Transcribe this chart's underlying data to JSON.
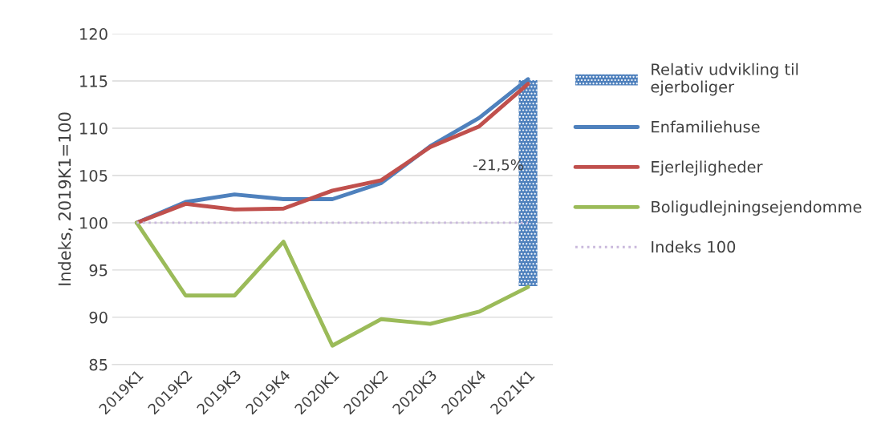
{
  "chart_data": {
    "type": "line",
    "ylabel": "Indeks, 2019K1=100",
    "categories": [
      "2019K1",
      "2019K2",
      "2019K3",
      "2019K4",
      "2020K1",
      "2020K2",
      "2020K3",
      "2020K4",
      "2021K1"
    ],
    "series": [
      {
        "name": "Relativ udvikling til ejerboliger",
        "type": "bar",
        "color": "#4f81bd",
        "values": [
          null,
          null,
          null,
          null,
          null,
          null,
          null,
          null,
          21.8
        ],
        "base": [
          null,
          null,
          null,
          null,
          null,
          null,
          null,
          null,
          93.3
        ]
      },
      {
        "name": "Enfamiliehuse",
        "color": "#4f81bd",
        "values": [
          100,
          102.2,
          103.0,
          102.5,
          102.5,
          104.2,
          108.1,
          111.1,
          115.2
        ]
      },
      {
        "name": "Ejerlejligheder",
        "color": "#c0504d",
        "values": [
          100,
          102.0,
          101.4,
          101.5,
          103.4,
          104.5,
          108.0,
          110.2,
          114.7
        ]
      },
      {
        "name": "Boligudlejningsejendomme",
        "color": "#9bbb59",
        "values": [
          100,
          92.3,
          92.3,
          98.0,
          87.0,
          89.8,
          89.3,
          90.6,
          93.2
        ]
      },
      {
        "name": "Indeks 100",
        "line_style": "dotted",
        "color": "#c9b8dc",
        "values": [
          100,
          100,
          100,
          100,
          100,
          100,
          100,
          100,
          100
        ]
      }
    ],
    "annotations": [
      "-21,5%"
    ],
    "ylim": [
      85,
      120
    ],
    "yticks": [
      85,
      90,
      95,
      100,
      105,
      110,
      115,
      120
    ],
    "grid": "y",
    "legend": "right",
    "marker": "none"
  }
}
